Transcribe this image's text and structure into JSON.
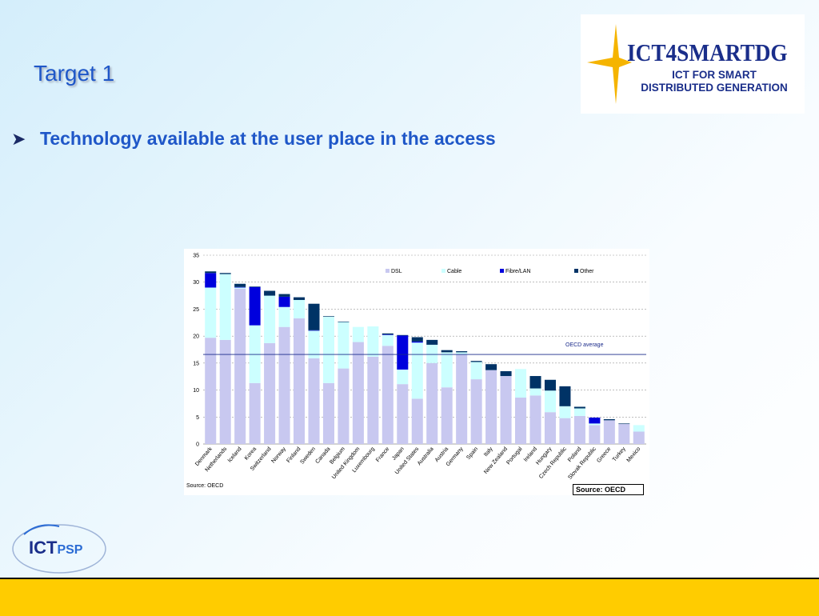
{
  "slide": {
    "title": "Target 1",
    "bullet": "Technology available at the user place in the access"
  },
  "logo_top": {
    "name": "ICT4SMARTDG",
    "line1": "ICT FOR SMART",
    "line2": "DISTRIBUTED GENERATION"
  },
  "logo_bottom": {
    "main": "ICT",
    "accent": "PSP"
  },
  "colors": {
    "title": "#1f57c8",
    "footer": "#ffcc00",
    "dsl": "#c8c8f0",
    "cable": "#ccffff",
    "fibre": "#0000dd",
    "other": "#003366"
  },
  "chart_data": {
    "type": "bar",
    "stacked": true,
    "categories": [
      "Denmark",
      "Netherlands",
      "Iceland",
      "Korea",
      "Switzerland",
      "Norway",
      "Finland",
      "Sweden",
      "Canada",
      "Belgium",
      "United Kingdom",
      "Luxembourg",
      "France",
      "Japan",
      "United States",
      "Australia",
      "Austria",
      "Germany",
      "Spain",
      "Italy",
      "New Zealand",
      "Portugal",
      "Ireland",
      "Hungary",
      "Czech Republic",
      "Poland",
      "Slovak Republic",
      "Greece",
      "Turkey",
      "Mexico"
    ],
    "series": [
      {
        "name": "DSL",
        "values": [
          19.7,
          19.3,
          28.8,
          11.3,
          18.7,
          21.7,
          23.3,
          15.9,
          11.3,
          14.0,
          18.9,
          16.2,
          18.2,
          11.1,
          8.4,
          15.0,
          10.5,
          16.6,
          12.0,
          13.7,
          12.6,
          8.6,
          9.0,
          5.9,
          4.8,
          5.2,
          3.5,
          4.4,
          3.7,
          2.3
        ]
      },
      {
        "name": "Cable",
        "values": [
          9.3,
          12.2,
          0.2,
          10.7,
          8.8,
          3.7,
          3.4,
          5.1,
          12.3,
          8.6,
          2.8,
          5.6,
          2.0,
          2.7,
          10.4,
          3.4,
          6.5,
          0.4,
          3.2,
          0.0,
          0.0,
          5.3,
          1.3,
          4.0,
          2.2,
          1.4,
          0.3,
          0.0,
          0.0,
          1.2
        ]
      },
      {
        "name": "Fibre/LAN",
        "values": [
          2.7,
          0.0,
          0.1,
          7.1,
          0.0,
          1.9,
          0.0,
          0.1,
          0.0,
          0.0,
          0.0,
          0.0,
          0.1,
          6.3,
          0.2,
          0.0,
          0.0,
          0.0,
          0.0,
          0.0,
          0.0,
          0.0,
          0.0,
          0.0,
          0.0,
          0.0,
          1.1,
          0.0,
          0.0,
          0.0
        ]
      },
      {
        "name": "Other",
        "values": [
          0.3,
          0.2,
          0.6,
          0.1,
          0.9,
          0.5,
          0.5,
          4.9,
          0.1,
          0.1,
          0.0,
          0.0,
          0.2,
          0.1,
          0.8,
          0.9,
          0.4,
          0.2,
          0.2,
          1.1,
          0.9,
          0.0,
          2.3,
          2.0,
          3.7,
          0.3,
          0.0,
          0.2,
          0.1,
          0.0
        ]
      }
    ],
    "reference_line": {
      "label": "OECD average",
      "value": 16.6
    },
    "ylim": [
      0,
      35
    ],
    "yticks": [
      0,
      5,
      10,
      15,
      20,
      25,
      30,
      35
    ],
    "grid": "horizontal-dashed",
    "legend": "top",
    "source": "Source: OECD",
    "source_box": "Source: OECD"
  }
}
